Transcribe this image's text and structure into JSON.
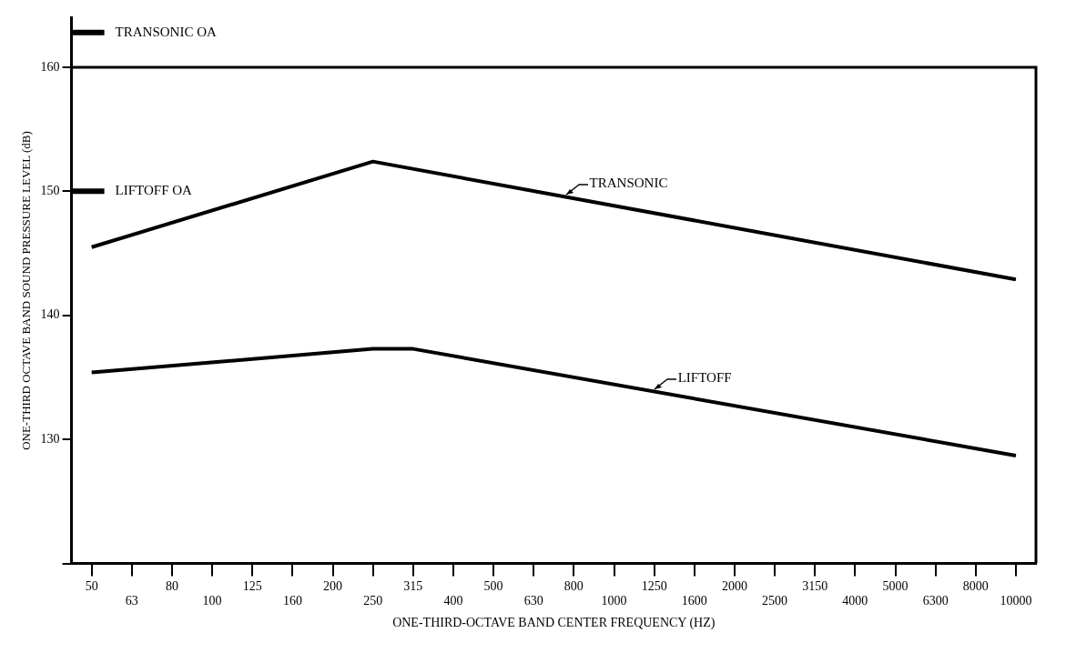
{
  "chart_data": {
    "type": "line",
    "xlabel": "ONE-THIRD-OCTAVE BAND CENTER FREQUENCY (HZ)",
    "ylabel": "ONE-THIRD OCTAVE BAND SOUND PRESSURE LEVEL (dB)",
    "categories": [
      "50",
      "63",
      "80",
      "100",
      "125",
      "160",
      "200",
      "250",
      "315",
      "400",
      "500",
      "630",
      "800",
      "1000",
      "1250",
      "1600",
      "2000",
      "2500",
      "3150",
      "4000",
      "5000",
      "6300",
      "8000",
      "10000"
    ],
    "series": [
      {
        "name": "TRANSONIC",
        "color": "#000000",
        "x": [
          "50",
          "250",
          "10000"
        ],
        "values": [
          145.5,
          152.4,
          142.9
        ]
      },
      {
        "name": "LIFTOFF",
        "color": "#000000",
        "x": [
          "50",
          "250",
          "315",
          "10000"
        ],
        "values": [
          135.4,
          137.3,
          137.3,
          128.7
        ]
      }
    ],
    "ylim": [
      120,
      164
    ],
    "yticks": [
      {
        "value": 120,
        "label": null
      },
      130,
      140,
      150,
      160
    ],
    "ref_lines": [
      {
        "axis": "y",
        "value": 162.8,
        "label": "TRANSONIC OA"
      },
      {
        "axis": "y",
        "value": 150,
        "label": "LIFTOFF OA"
      }
    ],
    "grid": false,
    "legend": "center",
    "marker": "none",
    "line_style": "solid"
  }
}
